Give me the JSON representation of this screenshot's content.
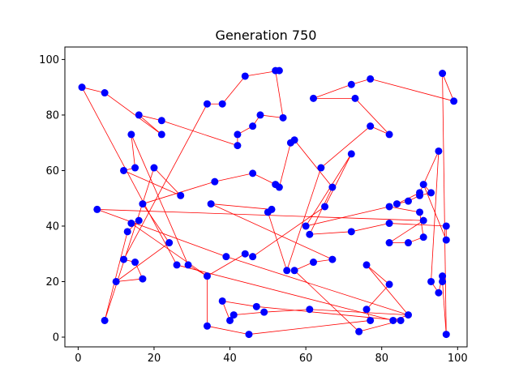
{
  "chart_data": {
    "type": "scatter",
    "title": "Generation 750",
    "xlabel": "",
    "ylabel": "",
    "xlim": [
      -3.5,
      102.5
    ],
    "ylim": [
      -3.5,
      104.5
    ],
    "xticks": [
      0,
      20,
      40,
      60,
      80,
      100
    ],
    "yticks": [
      0,
      20,
      40,
      60,
      80,
      100
    ],
    "grid": false,
    "colors": {
      "point": "#0000ff",
      "path": "#ff0000"
    },
    "tour": [
      [
        1,
        90
      ],
      [
        7,
        88
      ],
      [
        22,
        73
      ],
      [
        16,
        80
      ],
      [
        22,
        78
      ],
      [
        42,
        69
      ],
      [
        42,
        73
      ],
      [
        46,
        76
      ],
      [
        48,
        80
      ],
      [
        54,
        79
      ],
      [
        52,
        96
      ],
      [
        53,
        96
      ],
      [
        44,
        94
      ],
      [
        38,
        84
      ],
      [
        34,
        84
      ],
      [
        12,
        28
      ],
      [
        15,
        27
      ],
      [
        17,
        21
      ],
      [
        10,
        20
      ],
      [
        24,
        34
      ],
      [
        17,
        48
      ],
      [
        36,
        56
      ],
      [
        46,
        59
      ],
      [
        52,
        55
      ],
      [
        53,
        54
      ],
      [
        56,
        70
      ],
      [
        57,
        71
      ],
      [
        67,
        54
      ],
      [
        61,
        37
      ],
      [
        72,
        38
      ],
      [
        82,
        41
      ],
      [
        97,
        40
      ],
      [
        97,
        35
      ],
      [
        91,
        55
      ],
      [
        93,
        52
      ],
      [
        90,
        51
      ],
      [
        87,
        49
      ],
      [
        84,
        48
      ],
      [
        90,
        52
      ],
      [
        95,
        67
      ],
      [
        93,
        20
      ],
      [
        95,
        16
      ],
      [
        96,
        22
      ],
      [
        96,
        20
      ],
      [
        97,
        1
      ],
      [
        96,
        95
      ],
      [
        99,
        85
      ],
      [
        77,
        93
      ],
      [
        72,
        91
      ],
      [
        62,
        86
      ],
      [
        73,
        86
      ],
      [
        82,
        73
      ],
      [
        77,
        76
      ],
      [
        64,
        61
      ],
      [
        55,
        24
      ],
      [
        50,
        45
      ],
      [
        51,
        46
      ],
      [
        35,
        48
      ],
      [
        67,
        28
      ],
      [
        62,
        27
      ],
      [
        57,
        24
      ],
      [
        74,
        2
      ],
      [
        85,
        6
      ],
      [
        47,
        11
      ],
      [
        38,
        13
      ],
      [
        40,
        6
      ],
      [
        41,
        8
      ],
      [
        49,
        9
      ],
      [
        61,
        10
      ],
      [
        87,
        8
      ],
      [
        76,
        26
      ],
      [
        82,
        19
      ],
      [
        76,
        10
      ],
      [
        77,
        6
      ],
      [
        45,
        1
      ],
      [
        34,
        4
      ],
      [
        34,
        22
      ],
      [
        14,
        41
      ],
      [
        16,
        42
      ],
      [
        13,
        38
      ],
      [
        7,
        6
      ],
      [
        20,
        61
      ],
      [
        27,
        51
      ],
      [
        12,
        60
      ],
      [
        15,
        61
      ],
      [
        14,
        73
      ],
      [
        29,
        26
      ],
      [
        34,
        22
      ],
      [
        44,
        30
      ],
      [
        46,
        29
      ],
      [
        65,
        47
      ],
      [
        72,
        66
      ],
      [
        60,
        40
      ],
      [
        82,
        47
      ],
      [
        90,
        45
      ],
      [
        91,
        36
      ],
      [
        87,
        34
      ],
      [
        82,
        34
      ],
      [
        91,
        42
      ],
      [
        5,
        46
      ],
      [
        39,
        29
      ],
      [
        87,
        8
      ],
      [
        83,
        6
      ],
      [
        26,
        26
      ],
      [
        1,
        90
      ]
    ]
  }
}
